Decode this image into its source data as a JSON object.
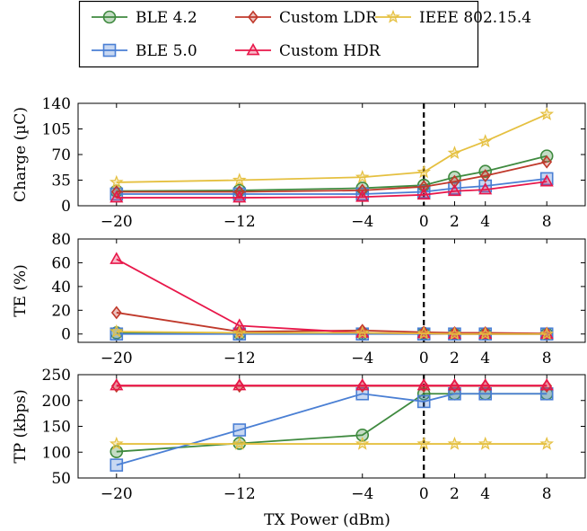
{
  "legend": {
    "entries": [
      {
        "label": "BLE 4.2",
        "color": "#3f8a3f",
        "marker": "circle"
      },
      {
        "label": "BLE 5.0",
        "color": "#4a7fd4",
        "marker": "square"
      },
      {
        "label": "Custom LDR",
        "color": "#c0392b",
        "marker": "diamond"
      },
      {
        "label": "Custom HDR",
        "color": "#e8174a",
        "marker": "triangle"
      },
      {
        "label": "IEEE 802.15.4",
        "color": "#e5c040",
        "marker": "star"
      }
    ]
  },
  "chart_data": [
    {
      "type": "line",
      "ylabel": "Charge (µC)",
      "xlabel": "",
      "x": [
        -20,
        -12,
        -4,
        0,
        2,
        4,
        8
      ],
      "x_ticks": [
        -20,
        -12,
        -4,
        0,
        2,
        4,
        8
      ],
      "y_ticks": [
        0,
        35,
        70,
        105,
        140
      ],
      "xlim": [
        -22.5,
        10.5
      ],
      "ylim": [
        0,
        140
      ],
      "vertical_dashed_line_at": 0,
      "series": [
        {
          "name": "BLE 4.2",
          "values": [
            20,
            21,
            24,
            28,
            39,
            47,
            68
          ]
        },
        {
          "name": "BLE 5.0",
          "values": [
            16,
            16,
            16,
            19,
            24,
            27,
            37
          ]
        },
        {
          "name": "Custom LDR",
          "values": [
            19,
            19,
            21,
            26,
            33,
            41,
            60
          ]
        },
        {
          "name": "Custom HDR",
          "values": [
            11,
            11,
            12,
            15,
            20,
            22,
            33
          ]
        },
        {
          "name": "IEEE 802.15.4",
          "values": [
            32,
            35,
            39,
            46,
            72,
            88,
            125
          ]
        }
      ]
    },
    {
      "type": "line",
      "ylabel": "TE (%)",
      "xlabel": "",
      "x": [
        -20,
        -12,
        -4,
        0,
        2,
        4,
        8
      ],
      "x_ticks": [
        -20,
        -12,
        -4,
        0,
        2,
        4,
        8
      ],
      "y_ticks": [
        0,
        20,
        40,
        60,
        80
      ],
      "xlim": [
        -22.5,
        10.5
      ],
      "ylim": [
        -7,
        80
      ],
      "vertical_dashed_line_at": 0,
      "series": [
        {
          "name": "BLE 4.2",
          "values": [
            1,
            0.5,
            0.5,
            0.5,
            0,
            0,
            0
          ]
        },
        {
          "name": "BLE 5.0",
          "values": [
            0,
            0,
            0,
            0,
            0,
            0,
            0
          ]
        },
        {
          "name": "Custom LDR",
          "values": [
            18,
            2,
            3,
            1.5,
            1,
            1,
            0.5
          ]
        },
        {
          "name": "Custom HDR",
          "values": [
            63,
            7,
            1,
            0.5,
            0,
            0,
            0
          ]
        },
        {
          "name": "IEEE 802.15.4",
          "values": [
            2,
            1,
            1,
            0.5,
            0,
            0,
            0
          ]
        }
      ]
    },
    {
      "type": "line",
      "ylabel": "TP (kbps)",
      "xlabel": "TX Power (dBm)",
      "x": [
        -20,
        -12,
        -4,
        0,
        2,
        4,
        8
      ],
      "x_ticks": [
        -20,
        -12,
        -4,
        0,
        2,
        4,
        8
      ],
      "y_ticks": [
        50,
        100,
        150,
        200,
        250
      ],
      "xlim": [
        -22.5,
        10.5
      ],
      "ylim": [
        50,
        250
      ],
      "vertical_dashed_line_at": 0,
      "series": [
        {
          "name": "BLE 4.2",
          "values": [
            101,
            117,
            133,
            213,
            213,
            213,
            213
          ]
        },
        {
          "name": "BLE 5.0",
          "values": [
            75,
            143,
            213,
            198,
            213,
            213,
            213
          ]
        },
        {
          "name": "Custom LDR",
          "values": [
            228,
            228,
            228,
            228,
            228,
            228,
            228
          ]
        },
        {
          "name": "Custom HDR",
          "values": [
            229,
            229,
            229,
            229,
            229,
            229,
            229
          ]
        },
        {
          "name": "IEEE 802.15.4",
          "values": [
            116,
            116,
            116,
            116,
            116,
            116,
            116
          ]
        }
      ]
    }
  ]
}
